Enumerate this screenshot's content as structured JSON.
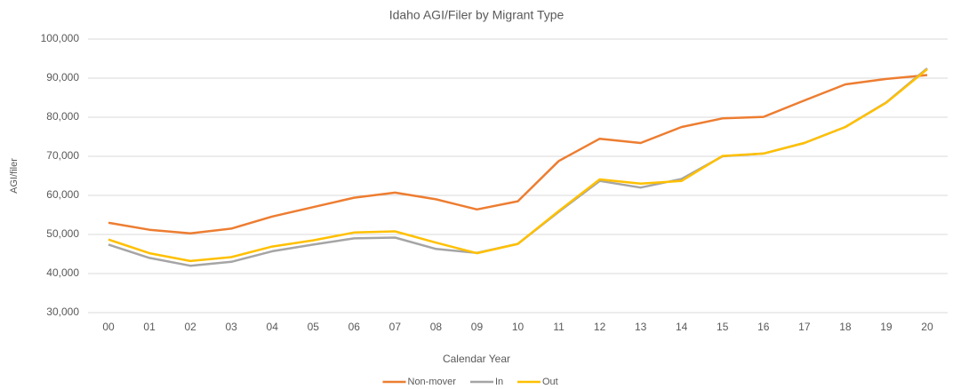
{
  "chart_data": {
    "type": "line",
    "title": "Idaho AGI/Filer by Migrant Type",
    "x_label": "Calendar Year",
    "y_label": "AGI/filer",
    "categories": [
      "00",
      "01",
      "02",
      "03",
      "04",
      "05",
      "06",
      "07",
      "08",
      "09",
      "10",
      "11",
      "12",
      "13",
      "14",
      "15",
      "16",
      "17",
      "18",
      "19",
      "20"
    ],
    "series": [
      {
        "name": "Non-mover",
        "color": "#ED7D31",
        "values": [
          53000,
          51200,
          50300,
          51500,
          54600,
          57000,
          59400,
          60700,
          59000,
          56400,
          58500,
          68800,
          74500,
          73400,
          77500,
          79700,
          80100,
          84300,
          88400,
          89800,
          90800
        ]
      },
      {
        "name": "In",
        "color": "#A5A5A5",
        "values": [
          47400,
          44000,
          42000,
          43000,
          45700,
          47400,
          49000,
          49200,
          46300,
          45300,
          47600,
          55800,
          63700,
          62000,
          64200,
          70000,
          70700,
          73400,
          77500,
          83800,
          92500
        ]
      },
      {
        "name": "Out",
        "color": "#FFC000",
        "values": [
          48700,
          45200,
          43200,
          44200,
          46900,
          48500,
          50500,
          50800,
          47900,
          45200,
          47600,
          56000,
          64100,
          63000,
          63700,
          70100,
          70700,
          73400,
          77500,
          83700,
          92300
        ]
      }
    ],
    "ylim": [
      30000,
      100000
    ],
    "yticks": [
      {
        "value": 30000,
        "label": "30,000"
      },
      {
        "value": 40000,
        "label": "40,000"
      },
      {
        "value": 50000,
        "label": "50,000"
      },
      {
        "value": 60000,
        "label": "60,000"
      },
      {
        "value": 70000,
        "label": "70,000"
      },
      {
        "value": 80000,
        "label": "80,000"
      },
      {
        "value": 90000,
        "label": "90,000"
      },
      {
        "value": 100000,
        "label": "100,000"
      }
    ],
    "grid": true,
    "legend": "bottom"
  }
}
